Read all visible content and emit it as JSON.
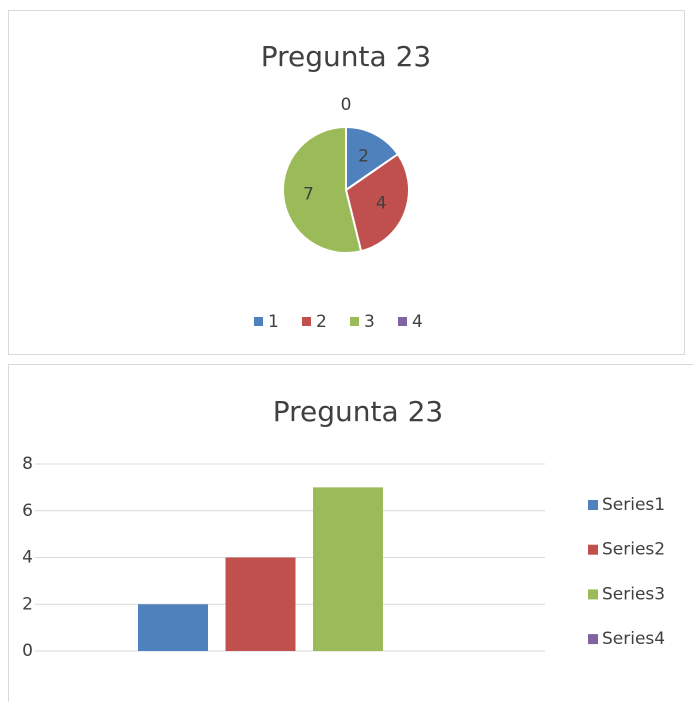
{
  "chart_data": [
    {
      "type": "pie",
      "title": "Pregunta 23",
      "categories": [
        "1",
        "2",
        "3",
        "4"
      ],
      "values": [
        2,
        4,
        7,
        0
      ],
      "colors": [
        "#4f81bd",
        "#c0504d",
        "#9bbb59",
        "#8064a2"
      ],
      "legend": "bottom"
    },
    {
      "type": "bar",
      "title": "Pregunta 23",
      "series": [
        {
          "name": "Series1",
          "color": "#4f81bd",
          "values": [
            2
          ]
        },
        {
          "name": "Series2",
          "color": "#c0504d",
          "values": [
            4
          ]
        },
        {
          "name": "Series3",
          "color": "#9bbb59",
          "values": [
            7
          ]
        },
        {
          "name": "Series4",
          "color": "#8064a2",
          "values": [
            0
          ]
        }
      ],
      "ylim": [
        0,
        8
      ],
      "yticks": [
        0,
        2,
        4,
        6,
        8
      ],
      "grid": true,
      "legend": "right"
    }
  ]
}
